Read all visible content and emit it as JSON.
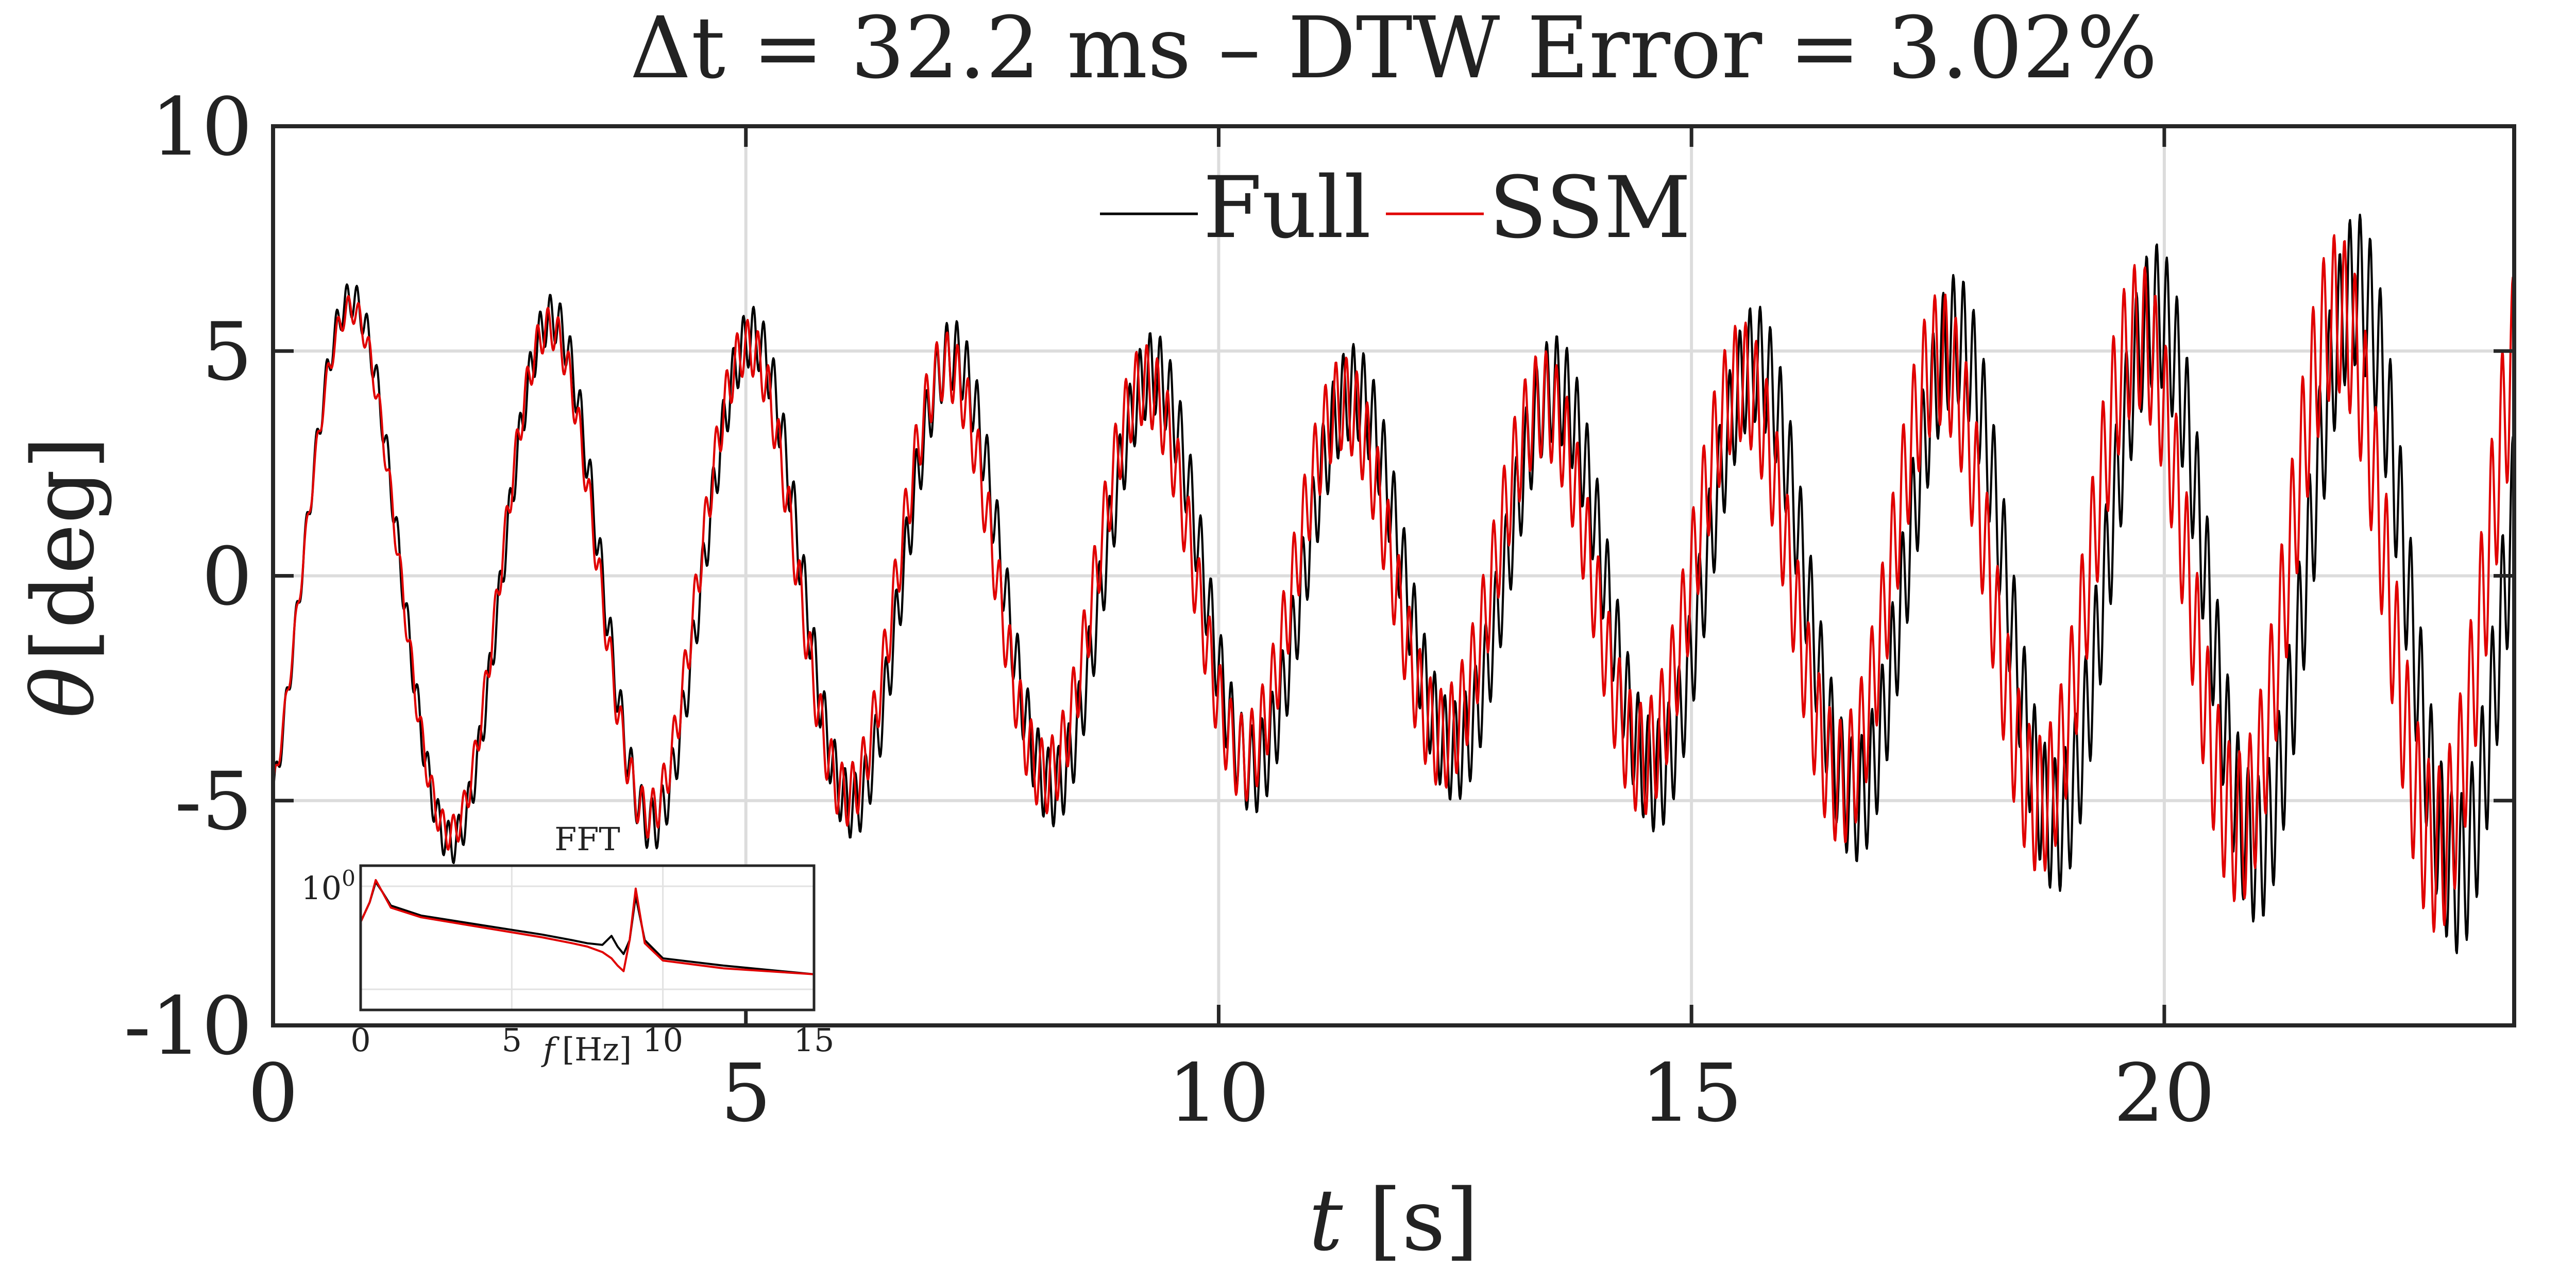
{
  "chart_data": {
    "type": "line",
    "title": "Δt = 32.2 ms – DTW Error = 3.02%",
    "xlabel": "t",
    "xlabel_unit": "[s]",
    "ylabel_symbol": "θ",
    "ylabel_unit": "[deg]",
    "xlim": [
      0,
      23.7
    ],
    "ylim": [
      -10,
      10
    ],
    "xticks": [
      0,
      5,
      10,
      15,
      20
    ],
    "xtick_labels": [
      "0",
      "5",
      "10",
      "15",
      "20"
    ],
    "yticks": [
      -10,
      -5,
      0,
      5,
      10
    ],
    "ytick_labels": [
      "-10",
      "-5",
      "0",
      "5",
      "10"
    ],
    "grid": true,
    "legend_location": "top-center",
    "series": [
      {
        "name": "Full",
        "color": "#000000",
        "model": {
          "period_s": 2.12,
          "phase_s": 0.3,
          "amplitude_start": 6.3,
          "amplitude_min": 3.9,
          "amplitude_min_at_s": 12.5,
          "amplitude_end": 6.8,
          "ripple_freq_hz": 9.3,
          "ripple_amp_start": 0.35,
          "ripple_amp_end": 1.8
        }
      },
      {
        "name": "SSM",
        "color": "#e00000",
        "model": {
          "period_s": 2.1,
          "phase_s": 0.3,
          "amplitude_start": 6.1,
          "amplitude_min": 3.6,
          "amplitude_min_at_s": 12.5,
          "amplitude_end": 6.3,
          "ripple_freq_hz": 9.0,
          "ripple_amp_start": 0.25,
          "ripple_amp_end": 1.9
        }
      }
    ],
    "inset": {
      "type": "line",
      "title": "FFT",
      "xlabel": "f",
      "xlabel_unit": "[Hz]",
      "xlim": [
        0,
        15
      ],
      "xticks": [
        0,
        5,
        10,
        15
      ],
      "xtick_labels": [
        "0",
        "5",
        "10",
        "15"
      ],
      "ytick_label_base": "10",
      "ytick_label_exp": "0",
      "scale_y": "log",
      "location": "bottom-left",
      "series": [
        {
          "name": "Full",
          "color": "#000000",
          "f": [
            0,
            0.3,
            0.5,
            0.7,
            1.0,
            2.0,
            4.0,
            6.0,
            7.0,
            7.5,
            8.0,
            8.3,
            8.5,
            8.7,
            8.9,
            9.1,
            9.4,
            10.0,
            12.0,
            15.0
          ],
          "amp": [
            0.45,
            0.7,
            1.1,
            0.9,
            0.65,
            0.52,
            0.42,
            0.34,
            0.3,
            0.28,
            0.27,
            0.33,
            0.26,
            0.22,
            0.3,
            0.8,
            0.3,
            0.2,
            0.17,
            0.14
          ]
        },
        {
          "name": "SSM",
          "color": "#e00000",
          "f": [
            0,
            0.3,
            0.5,
            0.7,
            1.0,
            2.0,
            4.0,
            6.0,
            7.0,
            7.5,
            8.0,
            8.3,
            8.5,
            8.7,
            8.9,
            9.1,
            9.4,
            10.0,
            12.0,
            15.0
          ],
          "amp": [
            0.45,
            0.7,
            1.15,
            0.9,
            0.62,
            0.5,
            0.4,
            0.32,
            0.28,
            0.26,
            0.23,
            0.2,
            0.17,
            0.15,
            0.3,
            0.95,
            0.28,
            0.19,
            0.16,
            0.14
          ]
        }
      ]
    }
  }
}
